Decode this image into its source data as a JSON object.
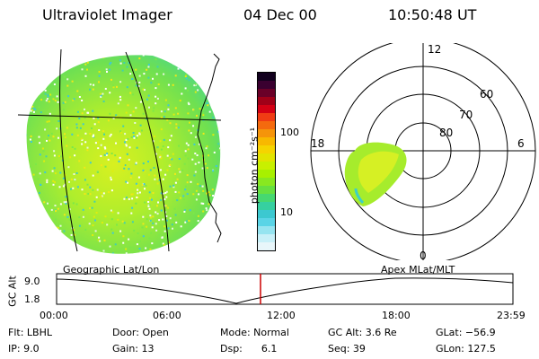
{
  "header": {
    "instrument": "Ultraviolet Imager",
    "date": "04 Dec 00",
    "time": "10:50:48 UT"
  },
  "colorbar": {
    "unit_label": "photon cm⁻²s⁻¹",
    "ticks": [
      "100",
      "10"
    ],
    "colors_top_to_bottom": [
      "#12001e",
      "#3a0030",
      "#6a0028",
      "#a00018",
      "#d40014",
      "#f03c14",
      "#f46a0e",
      "#f5940a",
      "#f8b800",
      "#f5d400",
      "#e2e400",
      "#c8f000",
      "#a8f000",
      "#88e820",
      "#66e040",
      "#46d870",
      "#36d0a0",
      "#3cc8d0",
      "#5ad4e6",
      "#96e4f0",
      "#c8f0f8",
      "#e8f6fa"
    ]
  },
  "polar_plot": {
    "mlt_labels": {
      "top": "12",
      "left": "18",
      "right": "6",
      "bottom": "0"
    },
    "lat_labels": [
      "60",
      "70",
      "80"
    ]
  },
  "timeline": {
    "left_title": "Geographic Lat/Lon",
    "right_title": "Apex MLat/MLT",
    "y_axis_label": "GC Alt",
    "y_ticks": [
      "9.0",
      "1.8"
    ],
    "x_ticks": [
      "00:00",
      "06:00",
      "12:00",
      "18:00",
      "23:59"
    ],
    "current_marker_color": "#cc0000"
  },
  "info": {
    "flt": "Flt: LBHL",
    "ip": "IP:  9.0",
    "door": "Door: Open",
    "gain": "Gain: 13",
    "mode": "Mode: Normal",
    "dsp": "Dsp:      6.1",
    "gc_alt": "GC Alt: 3.6 Re",
    "seq": "Seq: 39",
    "glat": "GLat: −56.9",
    "glon": "GLon: 127.5"
  }
}
